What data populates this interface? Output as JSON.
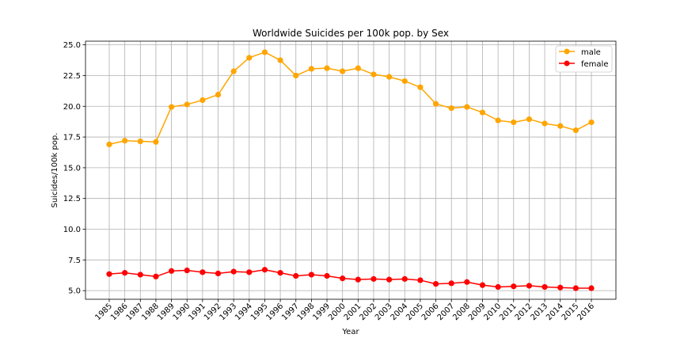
{
  "chart_data": {
    "type": "line",
    "title": "Worldwide Suicides per 100k pop. by Sex",
    "xlabel": "Year",
    "ylabel": "Suicides/100k pop.",
    "x": [
      "1985",
      "1986",
      "1987",
      "1988",
      "1989",
      "1990",
      "1991",
      "1992",
      "1993",
      "1994",
      "1995",
      "1996",
      "1997",
      "1998",
      "1999",
      "2000",
      "2001",
      "2002",
      "2003",
      "2004",
      "2005",
      "2006",
      "2007",
      "2008",
      "2009",
      "2010",
      "2011",
      "2012",
      "2013",
      "2014",
      "2015",
      "2016"
    ],
    "ylim": [
      4.3,
      25.3
    ],
    "yticks": [
      "5.0",
      "7.5",
      "10.0",
      "12.5",
      "15.0",
      "17.5",
      "20.0",
      "22.5",
      "25.0"
    ],
    "grid": true,
    "legend_position": "top-right",
    "series": [
      {
        "name": "male",
        "color": "#FFA500",
        "values": [
          16.9,
          17.2,
          17.15,
          17.1,
          19.95,
          20.15,
          20.5,
          20.95,
          22.85,
          23.95,
          24.4,
          23.75,
          22.5,
          23.05,
          23.1,
          22.85,
          23.1,
          22.6,
          22.4,
          22.05,
          21.55,
          20.2,
          19.85,
          19.95,
          19.5,
          18.85,
          18.7,
          18.95,
          18.6,
          18.4,
          18.05,
          18.7
        ]
      },
      {
        "name": "female",
        "color": "#FF0000",
        "values": [
          6.35,
          6.45,
          6.3,
          6.15,
          6.6,
          6.65,
          6.5,
          6.4,
          6.55,
          6.5,
          6.7,
          6.45,
          6.2,
          6.3,
          6.2,
          6.0,
          5.9,
          5.95,
          5.9,
          5.95,
          5.85,
          5.55,
          5.6,
          5.7,
          5.45,
          5.3,
          5.35,
          5.4,
          5.3,
          5.25,
          5.2,
          5.2
        ]
      }
    ]
  }
}
